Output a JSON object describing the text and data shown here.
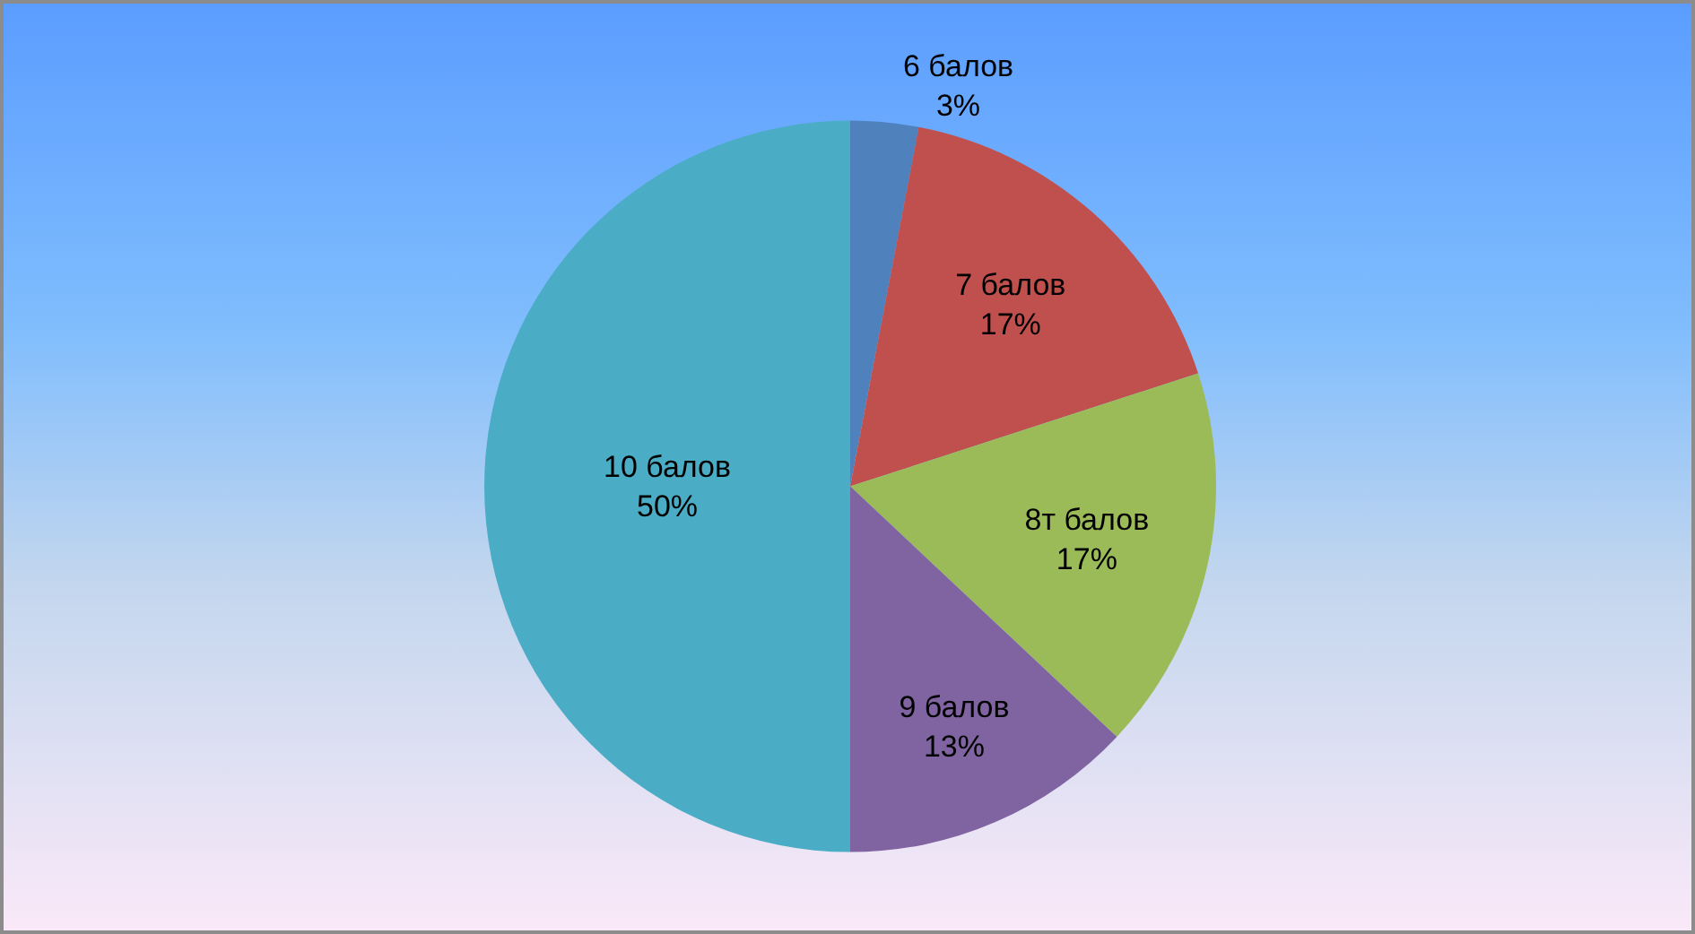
{
  "chart_data": {
    "type": "pie",
    "categories": [
      "6 балов",
      "7 балов",
      "8т балов",
      "9 балов",
      "10 балов"
    ],
    "values": [
      3,
      17,
      17,
      13,
      50
    ],
    "value_labels": [
      "3%",
      "17%",
      "17%",
      "13%",
      "50%"
    ],
    "colors": [
      "#4f81bd",
      "#c0504d",
      "#9bbb59",
      "#8064a2",
      "#4bacc6"
    ],
    "legend": false
  }
}
